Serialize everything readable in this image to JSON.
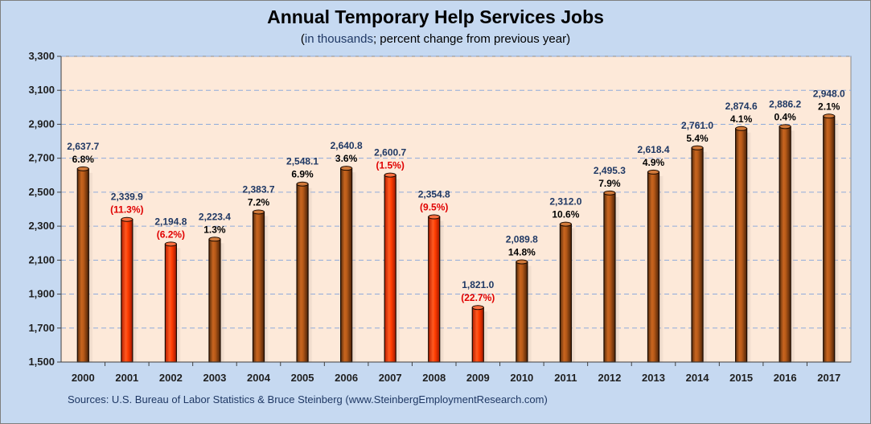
{
  "header": {
    "title": "Annual Temporary Help Services Jobs",
    "subtitle_paren_open": "(",
    "subtitle_blue": "in thousands",
    "subtitle_rest": "; percent change from previous year)"
  },
  "footer": {
    "source": "Sources: U.S. Bureau of Labor Statistics & Bruce Steinberg (www.SteinbergEmploymentResearch.com)"
  },
  "colors": {
    "increase_bar": "#8b4513",
    "decrease_bar": "#ff3300",
    "plot_background": "#fde9d9",
    "frame_background": "#c6d9f1",
    "negative_label": "#e00000"
  },
  "chart_data": {
    "type": "bar",
    "title": "Annual Temporary Help Services Jobs",
    "subtitle": "(in thousands; percent change from previous year)",
    "categories": [
      "2000",
      "2001",
      "2002",
      "2003",
      "2004",
      "2005",
      "2006",
      "2007",
      "2008",
      "2009",
      "2010",
      "2011",
      "2012",
      "2013",
      "2014",
      "2015",
      "2016",
      "2017"
    ],
    "values": [
      2637.7,
      2339.9,
      2194.8,
      2223.4,
      2383.7,
      2548.1,
      2640.8,
      2600.7,
      2354.8,
      1821.0,
      2089.8,
      2312.0,
      2495.3,
      2618.4,
      2761.0,
      2874.6,
      2886.2,
      2948.0
    ],
    "value_labels": [
      "2,637.7",
      "2,339.9",
      "2,194.8",
      "2,223.4",
      "2,383.7",
      "2,548.1",
      "2,640.8",
      "2,600.7",
      "2,354.8",
      "1,821.0",
      "2,089.8",
      "2,312.0",
      "2,495.3",
      "2,618.4",
      "2,761.0",
      "2,874.6",
      "2,886.2",
      "2,948.0"
    ],
    "pct_labels": [
      "6.8%",
      "(11.3%)",
      "(6.2%)",
      "1.3%",
      "7.2%",
      "6.9%",
      "3.6%",
      "(1.5%)",
      "(9.5%)",
      "(22.7%)",
      "14.8%",
      "10.6%",
      "7.9%",
      "4.9%",
      "5.4%",
      "4.1%",
      "0.4%",
      "2.1%"
    ],
    "pct_change": [
      6.8,
      -11.3,
      -6.2,
      1.3,
      7.2,
      6.9,
      3.6,
      -1.5,
      -9.5,
      -22.7,
      14.8,
      10.6,
      7.9,
      4.9,
      5.4,
      4.1,
      0.4,
      2.1
    ],
    "ylim": [
      1500,
      3300
    ],
    "yticks": [
      1500,
      1700,
      1900,
      2100,
      2300,
      2500,
      2700,
      2900,
      3100,
      3300
    ],
    "ytick_labels": [
      "1,500",
      "1,700",
      "1,900",
      "2,100",
      "2,300",
      "2,500",
      "2,700",
      "2,900",
      "3,100",
      "3,300"
    ],
    "xlabel": "",
    "ylabel": "",
    "grid": "horizontal dashed",
    "legend": "none"
  }
}
